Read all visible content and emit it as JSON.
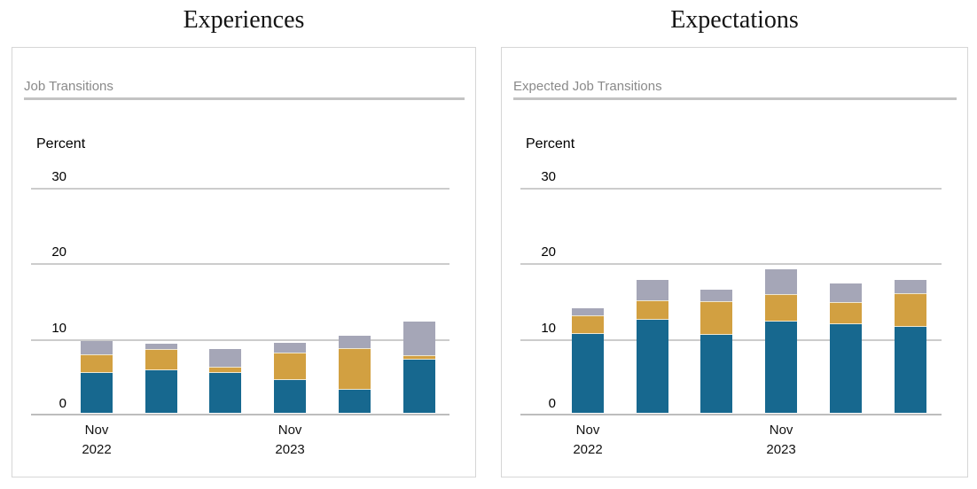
{
  "chart_data": [
    {
      "type": "bar",
      "subtype": "stacked-vertical",
      "title": "Experiences",
      "subtitle": "Job Transitions",
      "ylabel": "Percent",
      "yticks": [
        0,
        10,
        20,
        30
      ],
      "ylim": [
        0,
        33
      ],
      "grid": "horizontal",
      "legend": "none",
      "series_order": [
        "blue",
        "gold",
        "gray"
      ],
      "colors": {
        "blue": "#17688f",
        "gold": "#d2a041",
        "gray": "#a5a6b7"
      },
      "x_tick_labels": [
        {
          "bar_index": 0,
          "lines": [
            "Nov",
            "2022"
          ]
        },
        {
          "bar_index": 3,
          "lines": [
            "Nov",
            "2023"
          ]
        }
      ],
      "bars": [
        {
          "blue": 5.4,
          "gold": 2.3,
          "gray": 1.8
        },
        {
          "blue": 5.8,
          "gold": 2.6,
          "gray": 0.7
        },
        {
          "blue": 5.4,
          "gold": 0.7,
          "gray": 2.4
        },
        {
          "blue": 4.5,
          "gold": 3.5,
          "gray": 1.3
        },
        {
          "blue": 3.2,
          "gold": 5.4,
          "gray": 1.6
        },
        {
          "blue": 7.2,
          "gold": 0.4,
          "gray": 4.5
        }
      ]
    },
    {
      "type": "bar",
      "subtype": "stacked-vertical",
      "title": "Expectations",
      "subtitle": "Expected Job Transitions",
      "ylabel": "Percent",
      "yticks": [
        0,
        10,
        20,
        30
      ],
      "ylim": [
        0,
        33
      ],
      "grid": "horizontal",
      "legend": "none",
      "series_order": [
        "blue",
        "gold",
        "gray"
      ],
      "colors": {
        "blue": "#17688f",
        "gold": "#d2a041",
        "gray": "#a5a6b7"
      },
      "x_tick_labels": [
        {
          "bar_index": 0,
          "lines": [
            "Nov",
            "2022"
          ]
        },
        {
          "bar_index": 3,
          "lines": [
            "Nov",
            "2023"
          ]
        }
      ],
      "bars": [
        {
          "blue": 10.5,
          "gold": 2.4,
          "gray": 0.9
        },
        {
          "blue": 12.4,
          "gold": 2.5,
          "gray": 2.7
        },
        {
          "blue": 10.4,
          "gold": 4.4,
          "gray": 1.5
        },
        {
          "blue": 12.2,
          "gold": 3.5,
          "gray": 3.3
        },
        {
          "blue": 11.8,
          "gold": 2.9,
          "gray": 2.4
        },
        {
          "blue": 11.5,
          "gold": 4.3,
          "gray": 1.8
        }
      ]
    }
  ]
}
